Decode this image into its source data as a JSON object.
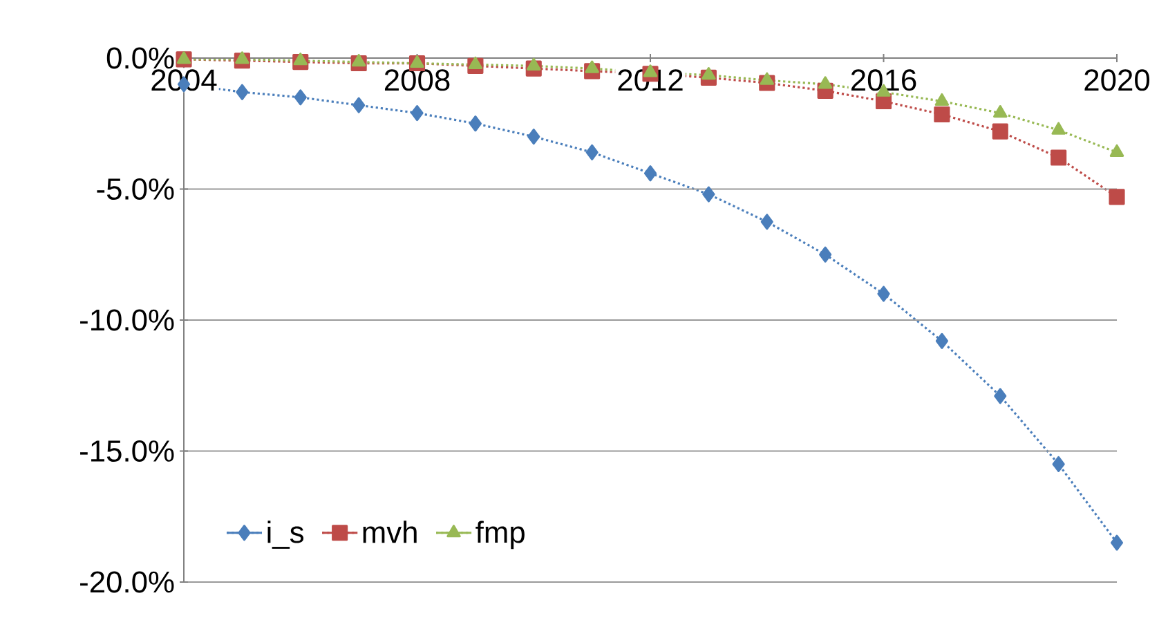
{
  "chart_data": {
    "type": "line",
    "x": [
      2004,
      2005,
      2006,
      2007,
      2008,
      2009,
      2010,
      2011,
      2012,
      2013,
      2014,
      2015,
      2016,
      2017,
      2018,
      2019,
      2020
    ],
    "series": [
      {
        "name": "i_s",
        "color": "#4a7ebb",
        "marker": "diamond",
        "values": [
          -1.0,
          -1.3,
          -1.5,
          -1.8,
          -2.1,
          -2.5,
          -3.0,
          -3.6,
          -4.4,
          -5.2,
          -6.25,
          -7.5,
          -9.0,
          -10.8,
          -12.9,
          -15.5,
          -18.5
        ]
      },
      {
        "name": "mvh",
        "color": "#be4b48",
        "marker": "square",
        "values": [
          -0.05,
          -0.1,
          -0.15,
          -0.2,
          -0.2,
          -0.3,
          -0.4,
          -0.5,
          -0.6,
          -0.75,
          -0.95,
          -1.25,
          -1.65,
          -2.15,
          -2.8,
          -3.8,
          -5.3
        ]
      },
      {
        "name": "fmp",
        "color": "#98b954",
        "marker": "triangle",
        "values": [
          -0.05,
          -0.05,
          -0.1,
          -0.15,
          -0.2,
          -0.25,
          -0.3,
          -0.4,
          -0.55,
          -0.65,
          -0.85,
          -1.0,
          -1.3,
          -1.65,
          -2.1,
          -2.75,
          -3.6
        ]
      }
    ],
    "xlim": [
      2004,
      2020
    ],
    "xticks": [
      2004,
      2008,
      2012,
      2016,
      2020
    ],
    "ylim": [
      -20,
      0
    ],
    "yticks": [
      {
        "value": -20,
        "label": "-20.0%"
      },
      {
        "value": -15,
        "label": "-15.0%"
      },
      {
        "value": -10,
        "label": "-10.0%"
      },
      {
        "value": -5,
        "label": "-5.0%"
      },
      {
        "value": 0,
        "label": "0.0%"
      }
    ],
    "grid": "y",
    "legend": "bottom left",
    "line_style": "dotted"
  }
}
